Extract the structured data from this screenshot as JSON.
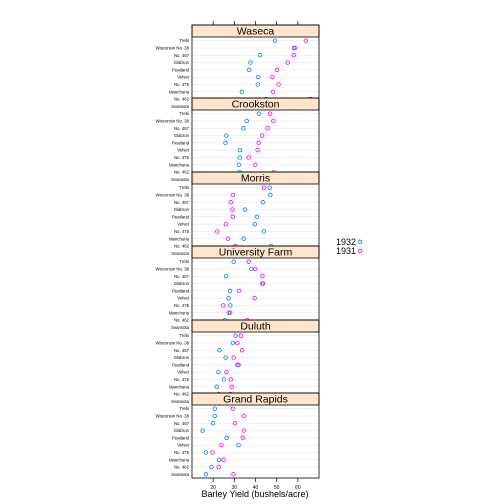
{
  "chart_data": {
    "type": "scatter",
    "title": "",
    "xlabel": "Barley Yield (bushels/acre)",
    "ylabel": "",
    "xlim": [
      10,
      70
    ],
    "xticks": [
      20,
      30,
      40,
      50,
      60
    ],
    "grid": true,
    "legend": {
      "placement": "right",
      "entries": [
        "1932",
        "1931"
      ]
    },
    "colors": {
      "1932": "#0080ff",
      "1931": "#ff00ff",
      "strip": "#ffe5cc"
    },
    "varieties": [
      "Trebi",
      "Wisconsin No. 38",
      "No. 457",
      "Glabron",
      "Peatland",
      "Velvet",
      "No. 475",
      "Manchuria",
      "No. 462",
      "Svansota"
    ],
    "panels": [
      {
        "site": "Waseca",
        "series": [
          {
            "name": "1932",
            "values": [
              49.2,
              58.2,
              42.2,
              37.6,
              37.0,
              41.3,
              41.1,
              33.6,
              45.1,
              40.0
            ]
          },
          {
            "name": "1931",
            "values": [
              63.8,
              58.8,
              58.1,
              55.2,
              50.2,
              48.0,
              50.9,
              48.3,
              66.0,
              47.3
            ]
          }
        ]
      },
      {
        "site": "Crookston",
        "series": [
          {
            "name": "1932",
            "values": [
              41.7,
              35.9,
              34.3,
              26.2,
              25.8,
              32.6,
              32.6,
              32.2,
              32.5,
              20.6
            ]
          },
          {
            "name": "1931",
            "values": [
              46.9,
              48.4,
              45.7,
              43.1,
              41.5,
              41.0,
              36.8,
              39.9,
              48.6,
              40.5
            ]
          }
        ]
      },
      {
        "site": "Morris",
        "series": [
          {
            "name": "1932",
            "values": [
              46.7,
              47.0,
              43.5,
              35.1,
              40.7,
              39.7,
              43.9,
              34.4,
              47.3,
              35.1
            ]
          },
          {
            "name": "1931",
            "values": [
              44.0,
              29.3,
              28.3,
              29.1,
              29.3,
              26.0,
              21.9,
              27.0,
              30.5,
              26.0
            ]
          }
        ]
      },
      {
        "site": "University Farm",
        "series": [
          {
            "name": "1932",
            "values": [
              29.7,
              38.0,
              26.1,
              43.6,
              28.0,
              27.3,
              28.1,
              28.0,
              25.6,
              27.4
            ]
          },
          {
            "name": "1931",
            "values": [
              36.8,
              39.9,
              43.3,
              43.2,
              32.3,
              39.6,
              24.8,
              27.4,
              36.1,
              31.3
            ]
          }
        ]
      },
      {
        "site": "Duluth",
        "series": [
          {
            "name": "1932",
            "values": [
              30.6,
              29.3,
              23.0,
              25.9,
              31.4,
              22.5,
              25.1,
              21.7,
              22.6,
              22.2
            ]
          },
          {
            "name": "1931",
            "values": [
              33.1,
              31.4,
              33.7,
              29.7,
              32.0,
              26.3,
              28.3,
              28.8,
              28.2,
              25.7
            ]
          }
        ]
      },
      {
        "site": "Grand Rapids",
        "series": [
          {
            "name": "1932",
            "values": [
              20.8,
              20.7,
              19.9,
              15.0,
              26.4,
              32.0,
              16.6,
              22.8,
              19.2,
              16.6
            ]
          },
          {
            "name": "1931",
            "values": [
              29.4,
              34.4,
              30.3,
              34.5,
              34.0,
              23.9,
              19.7,
              24.9,
              22.6,
              29.6
            ]
          }
        ]
      }
    ]
  }
}
